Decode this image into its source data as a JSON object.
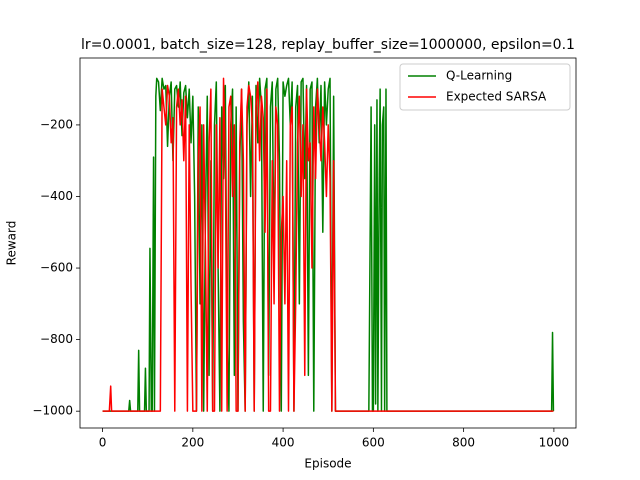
{
  "chart_data": {
    "type": "line",
    "title": "lr=0.0001, batch_size=128, replay_buffer_size=1000000, epsilon=0.1",
    "x_label": "Episode",
    "y_label": "Reward",
    "xlim": [
      -50,
      1049
    ],
    "ylim": [
      -1047,
      -13
    ],
    "xticks": [
      0,
      200,
      400,
      600,
      800,
      1000
    ],
    "yticks": [
      {
        "value": -1000,
        "label": "−1000"
      },
      {
        "value": -800,
        "label": "−800"
      },
      {
        "value": -600,
        "label": "−600"
      },
      {
        "value": -400,
        "label": "−400"
      },
      {
        "value": -200,
        "label": "−200"
      }
    ],
    "legend": "upper right",
    "x": [
      0,
      15,
      18,
      20,
      55,
      58,
      60,
      62,
      78,
      80,
      82,
      93,
      95,
      97,
      103,
      105,
      108,
      110,
      113,
      115,
      118,
      120,
      124,
      128,
      132,
      136,
      140,
      144,
      148,
      152,
      156,
      160,
      164,
      168,
      172,
      176,
      180,
      184,
      188,
      192,
      196,
      200,
      204,
      208,
      212,
      216,
      220,
      224,
      228,
      232,
      236,
      240,
      244,
      248,
      252,
      256,
      260,
      264,
      268,
      272,
      276,
      280,
      284,
      288,
      292,
      296,
      300,
      304,
      308,
      312,
      316,
      320,
      324,
      328,
      332,
      336,
      340,
      344,
      348,
      352,
      356,
      360,
      364,
      368,
      372,
      376,
      380,
      384,
      388,
      392,
      396,
      400,
      404,
      408,
      412,
      416,
      420,
      424,
      428,
      432,
      436,
      440,
      444,
      448,
      452,
      456,
      460,
      464,
      468,
      472,
      476,
      480,
      484,
      488,
      492,
      496,
      500,
      504,
      508,
      512,
      516,
      520,
      524,
      590,
      595,
      598,
      600,
      603,
      605,
      608,
      610,
      613,
      615,
      618,
      620,
      623,
      625,
      628,
      630,
      633,
      990,
      995,
      997,
      999
    ],
    "series": [
      {
        "name": "Q-Learning",
        "color": "#008000",
        "values": [
          -1000,
          -1000,
          -1000,
          -1000,
          -1000,
          -1000,
          -970,
          -1000,
          -1000,
          -830,
          -1000,
          -1000,
          -880,
          -1000,
          -1000,
          -545,
          -1000,
          -1000,
          -290,
          -1000,
          -120,
          -70,
          -80,
          -160,
          -70,
          -100,
          -90,
          -260,
          -120,
          -80,
          -300,
          -100,
          -90,
          -150,
          -80,
          -230,
          -110,
          -90,
          -180,
          -100,
          -250,
          -120,
          -400,
          -1000,
          -150,
          -700,
          -200,
          -1000,
          -450,
          -120,
          -900,
          -300,
          -1000,
          -200,
          -80,
          -600,
          -1000,
          -150,
          -350,
          -90,
          -800,
          -1000,
          -200,
          -100,
          -900,
          -150,
          -1000,
          -300,
          -100,
          -750,
          -1000,
          -200,
          -80,
          -400,
          -120,
          -1000,
          -90,
          -250,
          -70,
          -150,
          -1000,
          -100,
          -70,
          -900,
          -150,
          -80,
          -600,
          -100,
          -70,
          -300,
          -1000,
          -80,
          -120,
          -90,
          -70,
          -200,
          -80,
          -1000,
          -150,
          -90,
          -700,
          -80,
          -70,
          -350,
          -90,
          -900,
          -100,
          -80,
          -1000,
          -150,
          -70,
          -250,
          -90,
          -500,
          -80,
          -200,
          -100,
          -70,
          -1000,
          -120,
          -1000,
          -1000,
          -1000,
          -1000,
          -150,
          -1000,
          -1000,
          -200,
          -980,
          -130,
          -1000,
          -350,
          -100,
          -1000,
          -200,
          -150,
          -1000,
          -100,
          -1000,
          -1000,
          -1000,
          -1000,
          -780,
          -1000
        ]
      },
      {
        "name": "Expected SARSA",
        "color": "#ff0000",
        "values": [
          -1000,
          -1000,
          -930,
          -1000,
          -1000,
          -1000,
          -1000,
          -1000,
          -1000,
          -1000,
          -1000,
          -1000,
          -1000,
          -1000,
          -1000,
          -1000,
          -1000,
          -1000,
          -1000,
          -1000,
          -1000,
          -1000,
          -1000,
          -1000,
          -100,
          -150,
          -200,
          -90,
          -120,
          -250,
          -180,
          -1000,
          -150,
          -100,
          -200,
          -130,
          -300,
          -120,
          -1000,
          -200,
          -650,
          -1000,
          -1000,
          -1000,
          -300,
          -150,
          -1000,
          -200,
          -550,
          -1000,
          -250,
          -100,
          -1000,
          -1000,
          -200,
          -600,
          -180,
          -1000,
          -70,
          -300,
          -1000,
          -150,
          -120,
          -400,
          -200,
          -1000,
          -1000,
          -250,
          -100,
          -300,
          -1000,
          -150,
          -90,
          -120,
          -200,
          -1000,
          -150,
          -80,
          -300,
          -120,
          -180,
          -500,
          -100,
          -1000,
          -1000,
          -300,
          -700,
          -150,
          -200,
          -1000,
          -500,
          -400,
          -700,
          -300,
          -1000,
          -200,
          -150,
          -1000,
          -690,
          -250,
          -120,
          -400,
          -200,
          -900,
          -100,
          -300,
          -250,
          -600,
          -150,
          -350,
          -100,
          -200,
          -300,
          -150,
          -250,
          -400,
          -200,
          -350,
          -1000,
          -300,
          -1000,
          -1000,
          -1000,
          -1000,
          -1000,
          -1000,
          -1000,
          -1000,
          -1000,
          -1000,
          -1000,
          -1000,
          -1000,
          -1000,
          -1000,
          -1000,
          -1000,
          -1000,
          -1000,
          -1000,
          -1000,
          -1000,
          -1000,
          -1000
        ]
      }
    ]
  }
}
